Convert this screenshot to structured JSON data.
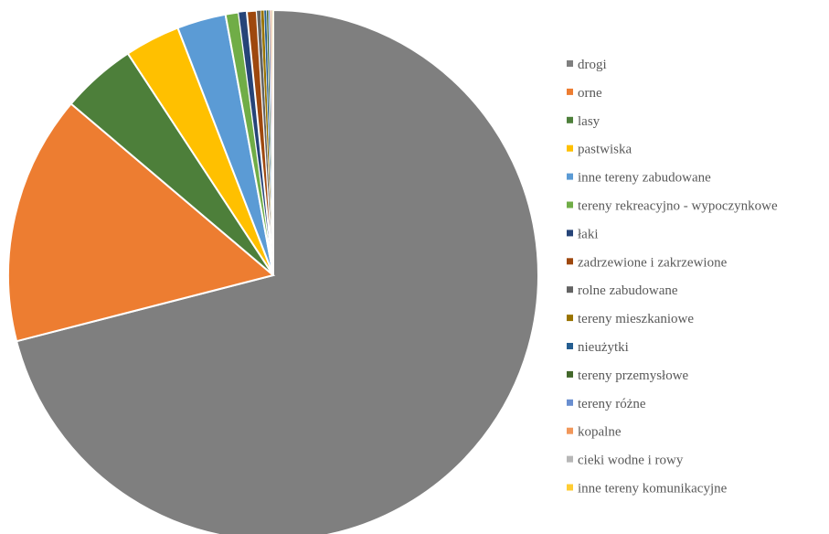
{
  "chart_data": {
    "type": "pie",
    "title": "",
    "legend_position": "right",
    "slices": [
      {
        "label": "drogi",
        "value": 71.5,
        "color": "#7f7f7f"
      },
      {
        "label": "orne",
        "value": 15.3,
        "color": "#ed7d31"
      },
      {
        "label": "lasy",
        "value": 4.6,
        "color": "#4d7f3a"
      },
      {
        "label": "pastwiska",
        "value": 3.4,
        "color": "#ffc000"
      },
      {
        "label": "inne tereny zabudowane",
        "value": 3.0,
        "color": "#5b9bd5"
      },
      {
        "label": "tereny rekreacyjno - wypoczynkowe",
        "value": 0.8,
        "color": "#70ad47"
      },
      {
        "label": "łaki",
        "value": 0.5,
        "color": "#264478"
      },
      {
        "label": "zadrzewione i zakrzewione",
        "value": 0.6,
        "color": "#9e480e"
      },
      {
        "label": "rolne zabudowane",
        "value": 0.25,
        "color": "#636363"
      },
      {
        "label": "tereny mieszkaniowe",
        "value": 0.2,
        "color": "#997300"
      },
      {
        "label": "nieużytki",
        "value": 0.15,
        "color": "#255e91"
      },
      {
        "label": "tereny przemysłowe",
        "value": 0.12,
        "color": "#43682b"
      },
      {
        "label": "tereny różne",
        "value": 0.1,
        "color": "#698ed0"
      },
      {
        "label": "kopalne",
        "value": 0.08,
        "color": "#f1975a"
      },
      {
        "label": "cieki wodne i rowy",
        "value": 0.06,
        "color": "#b7b7b7"
      },
      {
        "label": "inne tereny komunikacyjne",
        "value": 0.05,
        "color": "#ffcd33"
      }
    ]
  }
}
